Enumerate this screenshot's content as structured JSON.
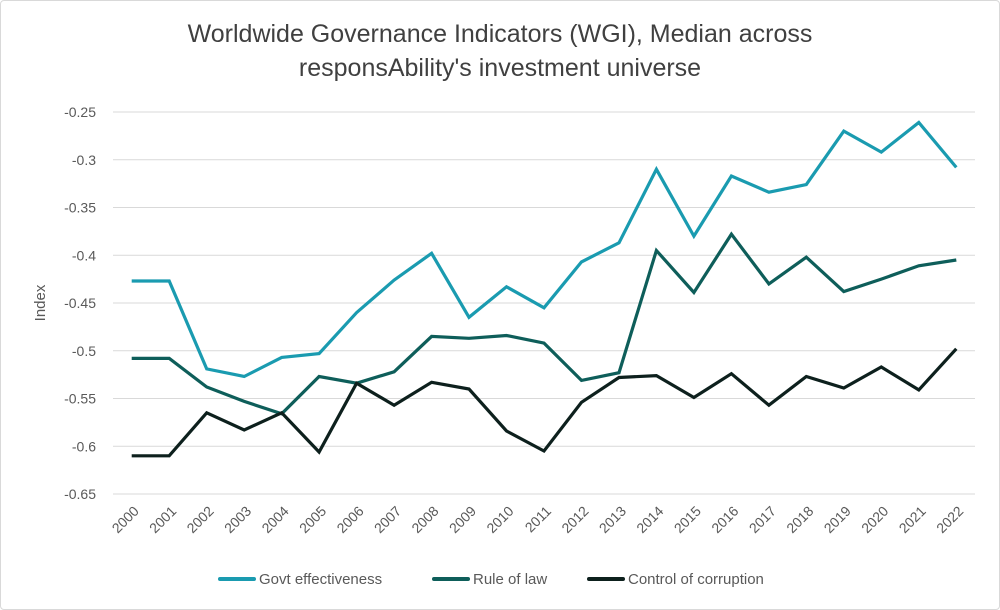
{
  "chart_data": {
    "type": "line",
    "title": "Worldwide Governance Indicators (WGI), Median across responsAbility's investment universe",
    "title_lines": [
      "Worldwide Governance Indicators (WGI), Median across",
      "responsAbility's investment universe"
    ],
    "xlabel": "",
    "ylabel": "Index",
    "ylim": [
      -0.65,
      -0.25
    ],
    "yticks": [
      -0.25,
      -0.3,
      -0.35,
      -0.4,
      -0.45,
      -0.5,
      -0.55,
      -0.6,
      -0.65
    ],
    "ytick_labels": [
      "-0.25",
      "-0.3",
      "-0.35",
      "-0.4",
      "-0.45",
      "-0.5",
      "-0.55",
      "-0.6",
      "-0.65"
    ],
    "grid": true,
    "legend_position": "bottom",
    "categories": [
      "2000",
      "2001",
      "2002",
      "2003",
      "2004",
      "2005",
      "2006",
      "2007",
      "2008",
      "2009",
      "2010",
      "2011",
      "2012",
      "2013",
      "2014",
      "2015",
      "2016",
      "2017",
      "2018",
      "2019",
      "2020",
      "2021",
      "2022"
    ],
    "series": [
      {
        "name": "Govt effectiveness",
        "color": "#1a9bb0",
        "values": [
          -0.427,
          -0.427,
          -0.519,
          -0.527,
          -0.507,
          -0.503,
          -0.46,
          -0.426,
          -0.398,
          -0.465,
          -0.433,
          -0.455,
          -0.407,
          -0.387,
          -0.31,
          -0.38,
          -0.317,
          -0.334,
          -0.326,
          -0.27,
          -0.292,
          -0.261,
          -0.308
        ]
      },
      {
        "name": "Rule of law",
        "color": "#0e5e5a",
        "values": [
          -0.508,
          -0.508,
          -0.538,
          -0.553,
          -0.566,
          -0.527,
          -0.534,
          -0.522,
          -0.485,
          -0.487,
          -0.484,
          -0.492,
          -0.531,
          -0.523,
          -0.395,
          -0.439,
          -0.378,
          -0.43,
          -0.402,
          -0.438,
          -0.425,
          -0.411,
          -0.405
        ]
      },
      {
        "name": "Control of corruption",
        "color": "#0d201d",
        "values": [
          -0.61,
          -0.61,
          -0.565,
          -0.583,
          -0.565,
          -0.606,
          -0.534,
          -0.557,
          -0.533,
          -0.54,
          -0.584,
          -0.605,
          -0.554,
          -0.528,
          -0.526,
          -0.549,
          -0.524,
          -0.557,
          -0.527,
          -0.539,
          -0.517,
          -0.541,
          -0.498
        ]
      }
    ]
  }
}
